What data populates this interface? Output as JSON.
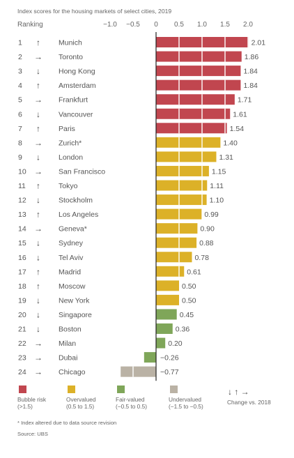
{
  "chart_data": {
    "type": "bar",
    "orientation": "horizontal",
    "title": "Index scores for the housing markets of select cities, 2019",
    "ranking_header": "Ranking",
    "xlim": [
      -1.5,
      2.2
    ],
    "ticks": [
      -1.0,
      -0.5,
      0,
      0.5,
      1.0,
      1.5,
      2.0
    ],
    "tick_labels": [
      "−1.0",
      "−0.5",
      "0",
      "0.5",
      "1.0",
      "1.5",
      "2.0"
    ],
    "grid": false,
    "colors": {
      "bubble": "#c1464f",
      "over": "#dcb128",
      "fair": "#7fa659",
      "under": "#bab2a5"
    },
    "arrow_glyphs": {
      "up": "↑",
      "down": "↓",
      "right": "→"
    },
    "rows": [
      {
        "rank": "1",
        "trend": "up",
        "city": "Munich",
        "value": 2.01,
        "label": "2.01",
        "category": "bubble"
      },
      {
        "rank": "2",
        "trend": "right",
        "city": "Toronto",
        "value": 1.86,
        "label": "1.86",
        "category": "bubble"
      },
      {
        "rank": "3",
        "trend": "down",
        "city": "Hong Kong",
        "value": 1.84,
        "label": "1.84",
        "category": "bubble"
      },
      {
        "rank": "4",
        "trend": "up",
        "city": "Amsterdam",
        "value": 1.84,
        "label": "1.84",
        "category": "bubble"
      },
      {
        "rank": "5",
        "trend": "right",
        "city": "Frankfurt",
        "value": 1.71,
        "label": "1.71",
        "category": "bubble"
      },
      {
        "rank": "6",
        "trend": "down",
        "city": "Vancouver",
        "value": 1.61,
        "label": "1.61",
        "category": "bubble"
      },
      {
        "rank": "7",
        "trend": "up",
        "city": "Paris",
        "value": 1.54,
        "label": "1.54",
        "category": "bubble"
      },
      {
        "rank": "8",
        "trend": "right",
        "city": "Zurich*",
        "value": 1.4,
        "label": "1.40",
        "category": "over"
      },
      {
        "rank": "9",
        "trend": "down",
        "city": "London",
        "value": 1.31,
        "label": "1.31",
        "category": "over"
      },
      {
        "rank": "10",
        "trend": "right",
        "city": "San Francisco",
        "value": 1.15,
        "label": "1.15",
        "category": "over"
      },
      {
        "rank": "11",
        "trend": "up",
        "city": "Tokyo",
        "value": 1.11,
        "label": "1.11",
        "category": "over"
      },
      {
        "rank": "12",
        "trend": "down",
        "city": "Stockholm",
        "value": 1.1,
        "label": "1.10",
        "category": "over"
      },
      {
        "rank": "13",
        "trend": "up",
        "city": "Los Angeles",
        "value": 0.99,
        "label": "0.99",
        "category": "over"
      },
      {
        "rank": "14",
        "trend": "right",
        "city": "Geneva*",
        "value": 0.9,
        "label": "0.90",
        "category": "over"
      },
      {
        "rank": "15",
        "trend": "down",
        "city": "Sydney",
        "value": 0.88,
        "label": "0.88",
        "category": "over"
      },
      {
        "rank": "16",
        "trend": "down",
        "city": "Tel Aviv",
        "value": 0.78,
        "label": "0.78",
        "category": "over"
      },
      {
        "rank": "17",
        "trend": "up",
        "city": "Madrid",
        "value": 0.61,
        "label": "0.61",
        "category": "over"
      },
      {
        "rank": "18",
        "trend": "up",
        "city": "Moscow",
        "value": 0.5,
        "label": "0.50",
        "category": "over"
      },
      {
        "rank": "19",
        "trend": "down",
        "city": "New York",
        "value": 0.5,
        "label": "0.50",
        "category": "over"
      },
      {
        "rank": "20",
        "trend": "down",
        "city": "Singapore",
        "value": 0.45,
        "label": "0.45",
        "category": "fair"
      },
      {
        "rank": "21",
        "trend": "down",
        "city": "Boston",
        "value": 0.36,
        "label": "0.36",
        "category": "fair"
      },
      {
        "rank": "22",
        "trend": "right",
        "city": "Milan",
        "value": 0.2,
        "label": "0.20",
        "category": "fair"
      },
      {
        "rank": "23",
        "trend": "right",
        "city": "Dubai",
        "value": -0.26,
        "label": "−0.26",
        "category": "fair"
      },
      {
        "rank": "24",
        "trend": "right",
        "city": "Chicago",
        "value": -0.77,
        "label": "−0.77",
        "category": "under"
      }
    ],
    "legend": [
      {
        "key": "bubble",
        "lines": [
          "Bubble risk",
          "(>1.5)"
        ]
      },
      {
        "key": "over",
        "lines": [
          "Overvalued",
          "(0.5 to 1.5)"
        ]
      },
      {
        "key": "fair",
        "lines": [
          "Fair-valued",
          "(−0.5 to 0.5)"
        ]
      },
      {
        "key": "under",
        "lines": [
          "Undervalued",
          "(−1.5 to −0.5)"
        ]
      }
    ],
    "change_legend": {
      "arrows": "↓ ↑ →",
      "label": "Change vs. 2018"
    },
    "footnotes": [
      "* Index altered due to data source revision",
      "Source: UBS"
    ]
  }
}
